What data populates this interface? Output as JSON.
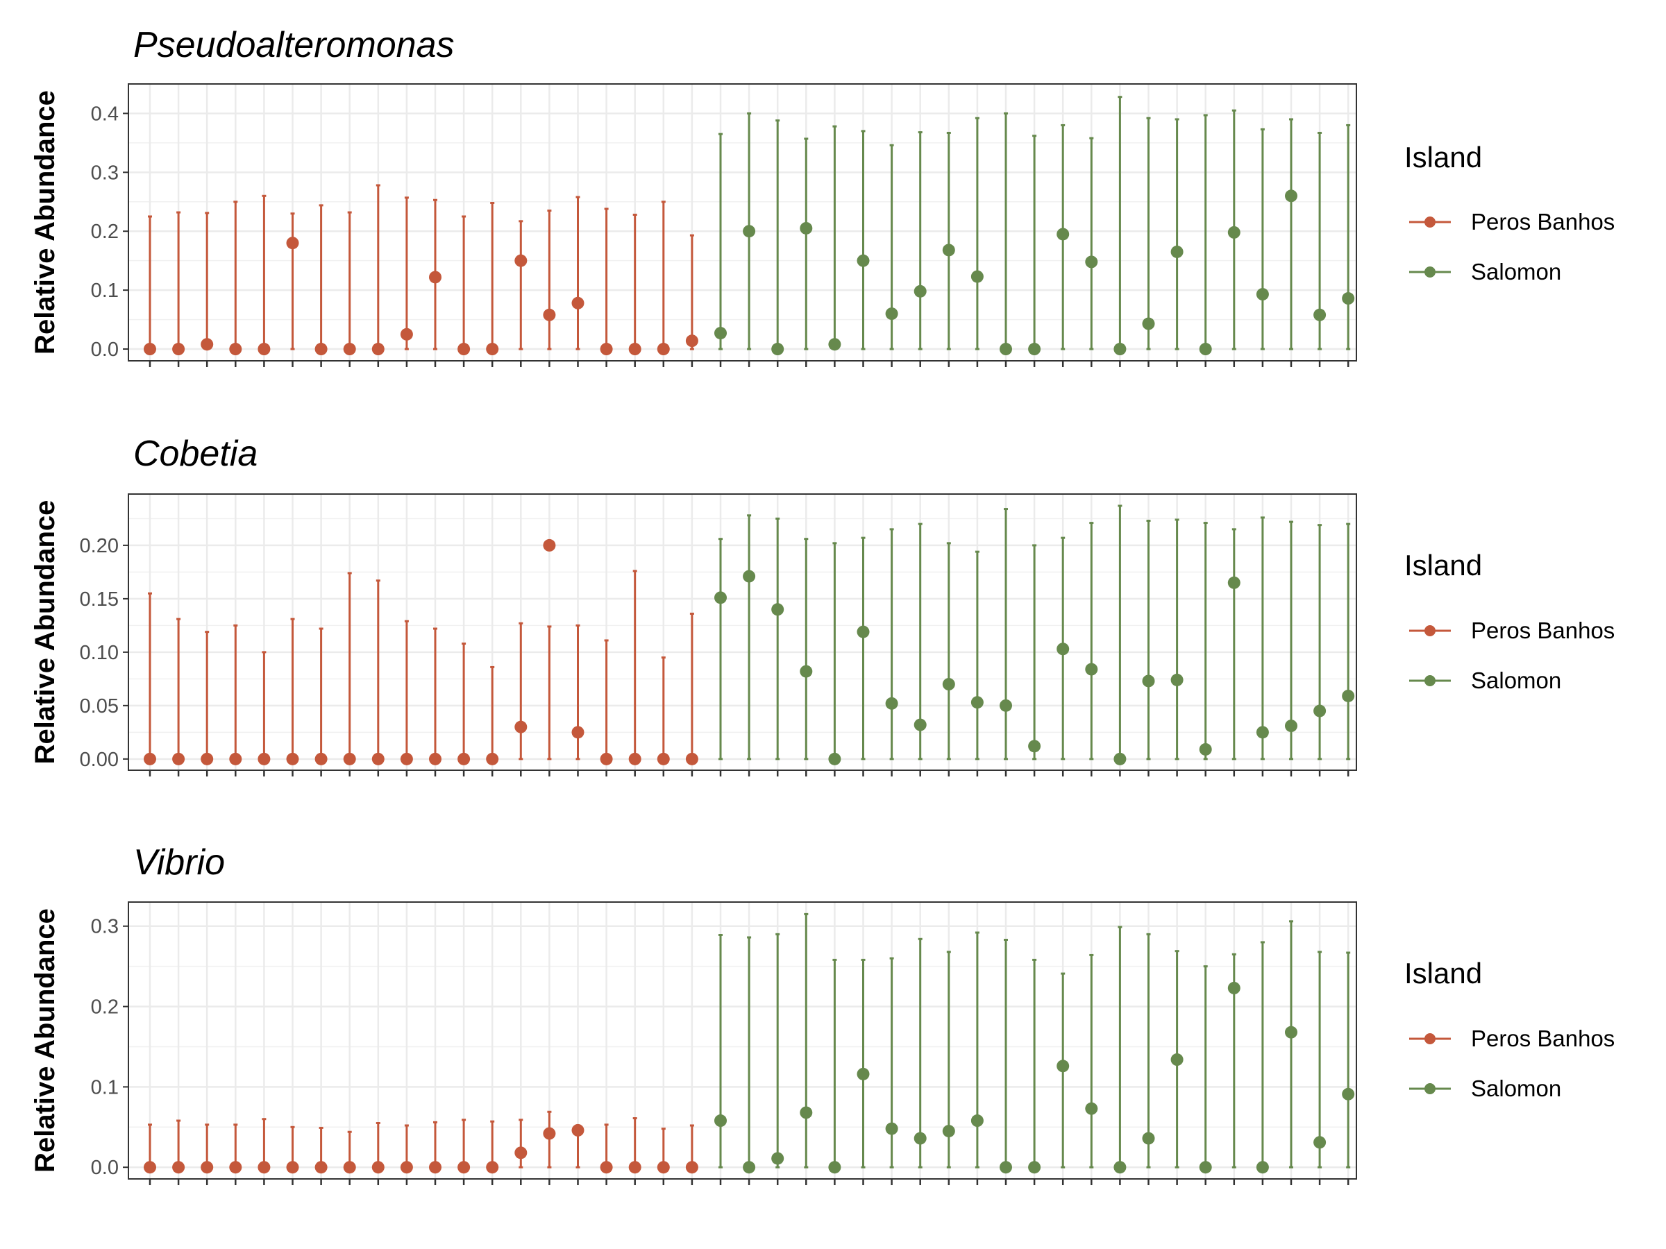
{
  "legend": {
    "title": "Island",
    "entries": [
      {
        "name": "Peros Banhos",
        "color": "#c4583b"
      },
      {
        "name": "Salomon",
        "color": "#66894d"
      }
    ]
  },
  "chart_data": [
    {
      "type": "scatter",
      "title": "Pseudoalteromonas",
      "ylabel": "Relative Abundance",
      "xlabel": "",
      "ylim": [
        -0.02,
        0.45
      ],
      "yticks": [
        0.0,
        0.1,
        0.2,
        0.3,
        0.4
      ],
      "ytick_labels": [
        "0.0",
        "0.1",
        "0.2",
        "0.3",
        "0.4"
      ],
      "grid": true,
      "legend_position": "right",
      "error_lower": 0,
      "series": [
        {
          "name": "Peros Banhos",
          "values": [
            0,
            0,
            0.008,
            0,
            0,
            0.18,
            0,
            0,
            0,
            0.025,
            0.122,
            0,
            0,
            0.15,
            0.058,
            0.078,
            0,
            0,
            0,
            0.014
          ],
          "upper": [
            0.225,
            0.232,
            0.231,
            0.25,
            0.26,
            0.23,
            0.244,
            0.232,
            0.278,
            0.257,
            0.253,
            0.225,
            0.248,
            0.217,
            0.235,
            0.258,
            0.238,
            0.228,
            0.25,
            0.193
          ]
        },
        {
          "name": "Salomon",
          "values": [
            0.027,
            0.2,
            0,
            0.205,
            0.008,
            0.15,
            0.06,
            0.098,
            0.168,
            0.123,
            0,
            0,
            0.195,
            0.148,
            0,
            0.043,
            0.165,
            0,
            0.198,
            0.093,
            0.26,
            0.058,
            0.086
          ],
          "upper": [
            0.365,
            0.4,
            0.388,
            0.357,
            0.378,
            0.37,
            0.346,
            0.368,
            0.367,
            0.392,
            0.4,
            0.362,
            0.38,
            0.358,
            0.428,
            0.392,
            0.39,
            0.397,
            0.405,
            0.373,
            0.39,
            0.367,
            0.38
          ]
        }
      ]
    },
    {
      "type": "scatter",
      "title": "Cobetia",
      "ylabel": "Relative Abundance",
      "xlabel": "",
      "ylim": [
        -0.0105,
        0.248
      ],
      "yticks": [
        0.0,
        0.05,
        0.1,
        0.15,
        0.2
      ],
      "ytick_labels": [
        "0.00",
        "0.05",
        "0.10",
        "0.15",
        "0.20"
      ],
      "grid": true,
      "legend_position": "right",
      "error_lower": 0,
      "series": [
        {
          "name": "Peros Banhos",
          "values": [
            0,
            0,
            0,
            0,
            0,
            0,
            0,
            0,
            0,
            0,
            0,
            0,
            0,
            0.03,
            0.2,
            0.025,
            0,
            0,
            0,
            0
          ],
          "upper": [
            0.155,
            0.131,
            0.119,
            0.125,
            0.1,
            0.131,
            0.122,
            0.174,
            0.167,
            0.129,
            0.122,
            0.108,
            0.086,
            0.127,
            0.124,
            0.125,
            0.111,
            0.176,
            0.095,
            0.136
          ]
        },
        {
          "name": "Salomon",
          "values": [
            0.151,
            0.171,
            0.14,
            0.082,
            0,
            0.119,
            0.052,
            0.032,
            0.07,
            0.053,
            0.05,
            0.012,
            0.103,
            0.084,
            0,
            0.073,
            0.074,
            0.009,
            0.165,
            0.025,
            0.031,
            0.045,
            0.059
          ],
          "upper": [
            0.206,
            0.228,
            0.225,
            0.206,
            0.202,
            0.207,
            0.215,
            0.22,
            0.202,
            0.194,
            0.234,
            0.2,
            0.207,
            0.221,
            0.237,
            0.223,
            0.224,
            0.221,
            0.215,
            0.226,
            0.222,
            0.219,
            0.22
          ]
        }
      ]
    },
    {
      "type": "scatter",
      "title": "Vibrio",
      "ylabel": "Relative Abundance",
      "xlabel": "",
      "ylim": [
        -0.0145,
        0.33
      ],
      "yticks": [
        0.0,
        0.1,
        0.2,
        0.3
      ],
      "ytick_labels": [
        "0.0",
        "0.1",
        "0.2",
        "0.3"
      ],
      "grid": true,
      "legend_position": "right",
      "error_lower": 0,
      "series": [
        {
          "name": "Peros Banhos",
          "values": [
            0,
            0,
            0,
            0,
            0,
            0,
            0,
            0,
            0,
            0,
            0,
            0,
            0,
            0.018,
            0.042,
            0.046,
            0,
            0,
            0,
            0
          ],
          "upper": [
            0.053,
            0.058,
            0.053,
            0.053,
            0.06,
            0.05,
            0.049,
            0.044,
            0.055,
            0.052,
            0.056,
            0.059,
            0.057,
            0.059,
            0.069,
            0.052,
            0.053,
            0.061,
            0.048,
            0.052
          ]
        },
        {
          "name": "Salomon",
          "values": [
            0.058,
            0,
            0.011,
            0.068,
            0,
            0.116,
            0.048,
            0.036,
            0.045,
            0.058,
            0,
            0,
            0.126,
            0.073,
            0,
            0.036,
            0.134,
            0,
            0.223,
            0,
            0.168,
            0.031,
            0.091
          ],
          "upper": [
            0.289,
            0.286,
            0.29,
            0.315,
            0.258,
            0.258,
            0.26,
            0.284,
            0.268,
            0.292,
            0.283,
            0.258,
            0.241,
            0.264,
            0.299,
            0.29,
            0.269,
            0.25,
            0.265,
            0.28,
            0.306,
            0.268,
            0.267
          ]
        }
      ]
    }
  ]
}
